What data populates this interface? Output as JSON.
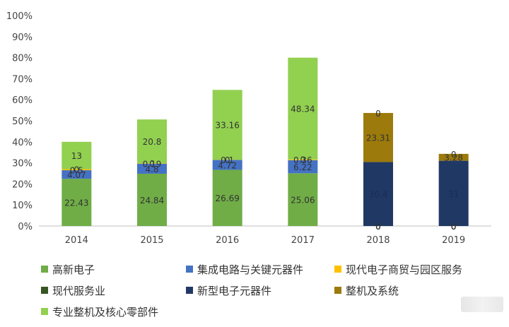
{
  "chart_data": {
    "type": "bar",
    "stacked": true,
    "categories": [
      "2014",
      "2015",
      "2016",
      "2017",
      "2018",
      "2019"
    ],
    "y_tick_labels": [
      "0%",
      "10%",
      "20%",
      "30%",
      "40%",
      "50%",
      "60%",
      "70%",
      "80%",
      "90%",
      "100%"
    ],
    "ylim": [
      0,
      100
    ],
    "legend_position": "bottom",
    "series": [
      {
        "name": "高新电子",
        "color": "#70ad47",
        "values": [
          22.43,
          24.84,
          26.69,
          25.06,
          0,
          0
        ],
        "labels": [
          "22.43",
          "24.84",
          "26.69",
          "25.06",
          "0",
          "0"
        ]
      },
      {
        "name": "集成电路与关键元器件",
        "color": "#4472c4",
        "values": [
          4.07,
          4.8,
          4.72,
          6.22,
          0,
          0
        ],
        "labels": [
          "4.07",
          "4.8",
          "4.72",
          "6.22",
          "0",
          "0"
        ]
      },
      {
        "name": "现代电子商贸与园区服务",
        "color": "#ffc000",
        "values": [
          0.5,
          0.19,
          0.1,
          0.36,
          0,
          0
        ],
        "labels": [
          "0.5",
          "0.19",
          "0.1",
          "0.36",
          "0",
          "0"
        ]
      },
      {
        "name": "现代服务业",
        "color": "#375623",
        "values": [
          0,
          0,
          0,
          0,
          0,
          0
        ],
        "labels": [
          "0",
          "0",
          "0",
          "0",
          "0",
          "0"
        ]
      },
      {
        "name": "新型电子元器件",
        "color": "#203864",
        "values": [
          0,
          0,
          0,
          0,
          30.4,
          31.0
        ],
        "labels": [
          "",
          "",
          "",
          "",
          "30.4",
          "31"
        ]
      },
      {
        "name": "整机及系统",
        "color": "#9c7a0b",
        "values": [
          0,
          0,
          0,
          0,
          23.31,
          3.28
        ],
        "labels": [
          "",
          "",
          "",
          "",
          "23.31",
          "3.28"
        ]
      },
      {
        "name": "专业整机及核心零部件",
        "color": "#92d050",
        "values": [
          13,
          20.8,
          33.16,
          48.34,
          0,
          0
        ],
        "labels": [
          "13",
          "20.8",
          "33.16",
          "48.34",
          "0",
          "0"
        ]
      }
    ]
  }
}
